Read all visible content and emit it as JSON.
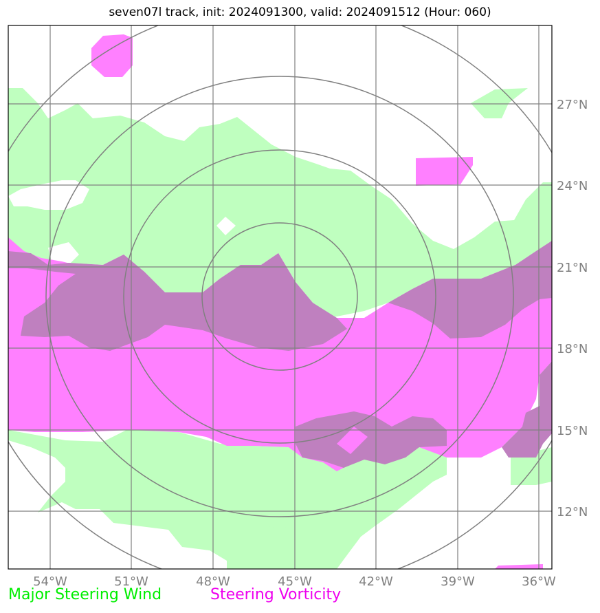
{
  "title": "seven07l track, init: 2024091300, valid: 2024091512 (Hour: 060)",
  "colors": {
    "wind": "#bfffbf",
    "vorticity": "#ff80ff",
    "overlap": "#bf80bf",
    "grid": "#808080",
    "rings": "#808080",
    "tick_text": "#808080"
  },
  "x_ticks": [
    "54°W",
    "51°W",
    "48°W",
    "45°W",
    "42°W",
    "39°W",
    "36°W"
  ],
  "y_ticks": [
    "27°N",
    "24°N",
    "21°N",
    "18°N",
    "15°N",
    "12°N"
  ],
  "legend": {
    "wind_label": "Major Steering Wind",
    "wind_color": "#00ee00",
    "vorticity_label": "Steering Vorticity",
    "vorticity_color": "#ee00ee"
  }
}
